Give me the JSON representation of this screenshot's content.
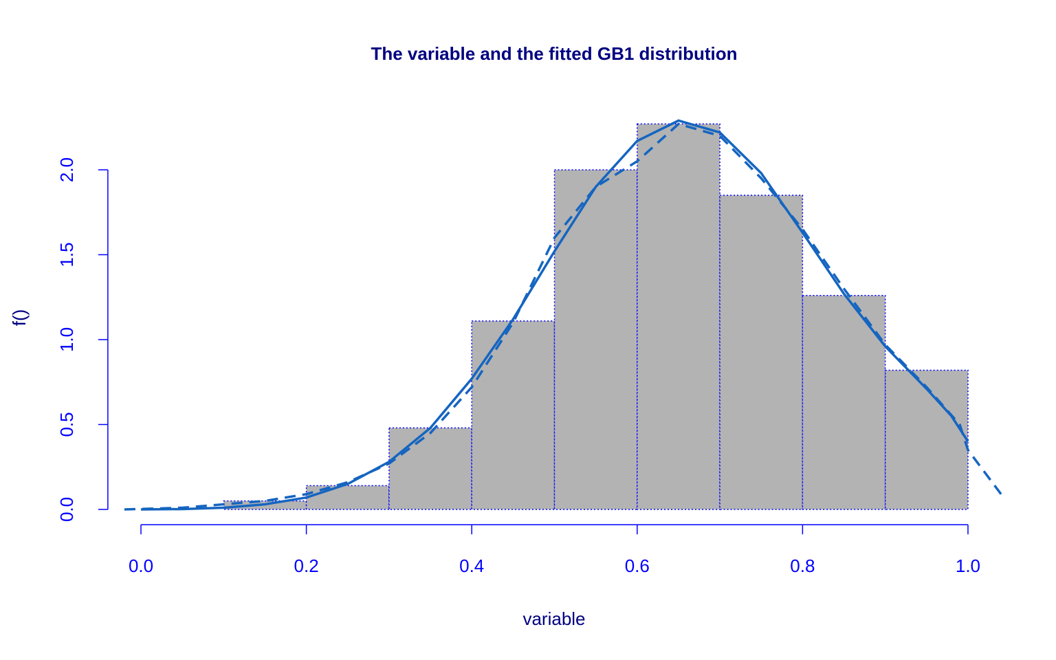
{
  "chart_data": {
    "type": "histogram",
    "title": "The variable and the fitted GB1 distribution",
    "xlabel": "variable",
    "ylabel": "f()",
    "bins": [
      0.1,
      0.2,
      0.3,
      0.4,
      0.5,
      0.6,
      0.7,
      0.8,
      0.9,
      1.0
    ],
    "values": [
      0.05,
      0.14,
      0.48,
      1.11,
      2.0,
      2.27,
      1.85,
      1.26,
      0.82
    ],
    "color": "#b3b3b3",
    "edge_color": "#0000ff",
    "series": [
      {
        "color": "#1565c0",
        "linestyle": "solid",
        "x": [
          0,
          0.05,
          0.1,
          0.15,
          0.2,
          0.25,
          0.3,
          0.35,
          0.4,
          0.45,
          0.5,
          0.55,
          0.6,
          0.65,
          0.7,
          0.75,
          0.8,
          0.85,
          0.9,
          0.95,
          0.98,
          1.0
        ],
        "values": [
          0,
          0.002,
          0.01,
          0.03,
          0.07,
          0.15,
          0.28,
          0.48,
          0.77,
          1.12,
          1.52,
          1.9,
          2.17,
          2.29,
          2.22,
          1.98,
          1.63,
          1.27,
          0.96,
          0.71,
          0.55,
          0.4
        ]
      },
      {
        "color": "#1565c0",
        "linestyle": "dashed",
        "x": [
          -0.02,
          0.05,
          0.1,
          0.15,
          0.2,
          0.25,
          0.3,
          0.35,
          0.4,
          0.45,
          0.5,
          0.55,
          0.6,
          0.65,
          0.7,
          0.75,
          0.8,
          0.85,
          0.9,
          0.95,
          0.99,
          1.0,
          1.04
        ],
        "values": [
          0,
          0.01,
          0.03,
          0.05,
          0.09,
          0.16,
          0.27,
          0.45,
          0.72,
          1.1,
          1.6,
          1.9,
          2.05,
          2.27,
          2.2,
          1.95,
          1.65,
          1.3,
          0.97,
          0.72,
          0.5,
          0.35,
          0.09
        ]
      }
    ],
    "xlim": [
      -0.04,
      1.08
    ],
    "ylim": [
      -0.09,
      2.4
    ],
    "xticks": [
      {
        "value": 0,
        "label": "0.0"
      },
      {
        "value": 0.2,
        "label": "0.2"
      },
      {
        "value": 0.4,
        "label": "0.4"
      },
      {
        "value": 0.6,
        "label": "0.6"
      },
      {
        "value": 0.8,
        "label": "0.8"
      },
      {
        "value": 1,
        "label": "1.0"
      }
    ],
    "yticks": [
      {
        "value": 0,
        "label": "0.0"
      },
      {
        "value": 0.5,
        "label": "0.5"
      },
      {
        "value": 1,
        "label": "1.0"
      },
      {
        "value": 1.5,
        "label": "1.5"
      },
      {
        "value": 2,
        "label": "2.0"
      }
    ],
    "axis_color": "#0000ff",
    "title_color": "#000080"
  }
}
